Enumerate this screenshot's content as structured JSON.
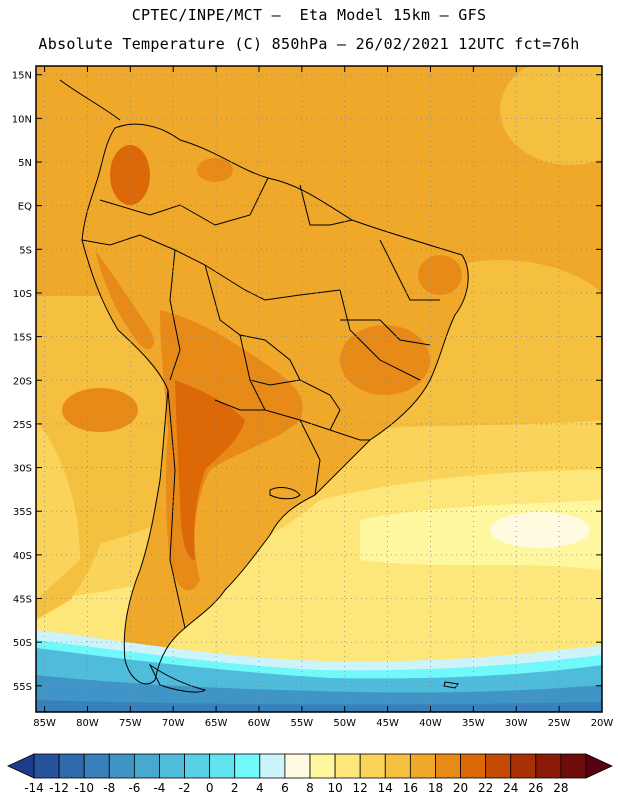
{
  "header": {
    "line1": "CPTEC/INPE/MCT –  Eta Model 15km – GFS",
    "line2": "Absolute Temperature (C) 850hPa – 26/02/2021 12UTC fct=76h"
  },
  "axes": {
    "lat_labels": [
      "15N",
      "10N",
      "5N",
      "EQ",
      "5S",
      "10S",
      "15S",
      "20S",
      "25S",
      "30S",
      "35S",
      "40S",
      "45S",
      "50S",
      "55S"
    ],
    "lon_labels": [
      "85W",
      "80W",
      "75W",
      "70W",
      "65W",
      "60W",
      "55W",
      "50W",
      "45W",
      "40W",
      "35W",
      "30W",
      "25W",
      "20W"
    ]
  },
  "colorbar": {
    "labels": [
      "-14",
      "-12",
      "-10",
      "-8",
      "-6",
      "-4",
      "-2",
      "0",
      "2",
      "4",
      "6",
      "8",
      "10",
      "12",
      "14",
      "16",
      "18",
      "20",
      "22",
      "24",
      "26",
      "28"
    ],
    "colors": [
      "#1e3c8c",
      "#27529c",
      "#2e6aac",
      "#3780bb",
      "#3f95c5",
      "#47a8d0",
      "#4fbcdb",
      "#58d0e6",
      "#62e4f0",
      "#70f8fa",
      "#cdf3fb",
      "#fffae0",
      "#fff7a0",
      "#fde77a",
      "#fad35a",
      "#f5bf40",
      "#f0a82a",
      "#e88a18",
      "#dc6808",
      "#c54a05",
      "#a83005",
      "#8a1a08",
      "#6e0b0b",
      "#5a0010"
    ]
  },
  "map": {
    "palette": {
      "ocean_warm": "#f5c040",
      "ocean_mid": "#f8d860",
      "ocean_pale": "#fff7a0",
      "ocean_cream": "#fffae0",
      "land_base": "#f0a82a",
      "land_hot": "#e88a18",
      "land_hotter": "#dc6808",
      "cold_1": "#cdf3fb",
      "cold_2": "#70f8fa",
      "cold_3": "#4fbcdb",
      "cold_4": "#3f95c5",
      "cold_5": "#2e6aac"
    }
  }
}
